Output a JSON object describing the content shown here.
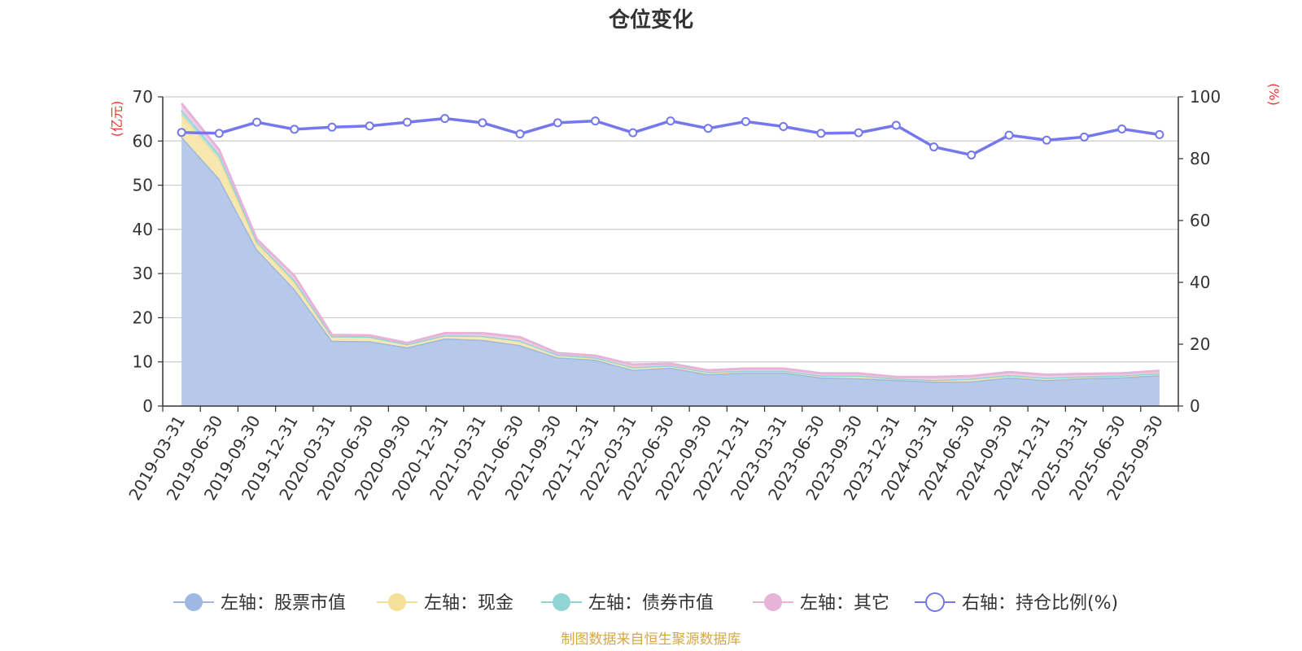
{
  "chart_data": {
    "type": "area",
    "title": "仓位变化",
    "left_unit": "(亿元)",
    "right_unit": "(%)",
    "left_ylim": [
      0,
      70
    ],
    "left_ticks": [
      0,
      10,
      20,
      30,
      40,
      50,
      60,
      70
    ],
    "right_ylim": [
      0,
      100
    ],
    "right_ticks": [
      0,
      20,
      40,
      60,
      80,
      100
    ],
    "categories": [
      "2019-03-31",
      "2019-06-30",
      "2019-09-30",
      "2019-12-31",
      "2020-03-31",
      "2020-06-30",
      "2020-09-30",
      "2020-12-31",
      "2021-03-31",
      "2021-06-30",
      "2021-09-30",
      "2021-12-31",
      "2022-03-31",
      "2022-06-30",
      "2022-09-30",
      "2022-12-31",
      "2023-03-31",
      "2023-06-30",
      "2023-09-30",
      "2023-12-31",
      "2024-03-31",
      "2024-06-30",
      "2024-09-30",
      "2024-12-31",
      "2025-03-31",
      "2025-06-30",
      "2025-09-30"
    ],
    "series": [
      {
        "name": "左轴：股票市值",
        "axis": "left",
        "type": "area",
        "color": "#9db8e2",
        "fill": "#b6c9e8",
        "values": [
          61.0,
          51.5,
          35.5,
          26.5,
          14.8,
          14.7,
          13.3,
          15.3,
          15.0,
          13.8,
          11.0,
          10.5,
          8.2,
          8.7,
          7.2,
          7.6,
          7.6,
          6.5,
          6.3,
          5.9,
          5.5,
          5.6,
          6.5,
          5.9,
          6.3,
          6.5,
          7.0
        ]
      },
      {
        "name": "左轴：现金",
        "axis": "left",
        "type": "area",
        "color": "#f5e09a",
        "fill": "#f8e8b0",
        "values": [
          5.0,
          4.5,
          1.5,
          1.5,
          1.0,
          1.0,
          0.7,
          0.7,
          0.9,
          1.0,
          0.6,
          0.5,
          0.6,
          0.5,
          0.5,
          0.4,
          0.4,
          0.4,
          0.6,
          0.3,
          0.4,
          0.6,
          0.5,
          0.5,
          0.4,
          0.4,
          0.4
        ]
      },
      {
        "name": "左轴：债券市值",
        "axis": "left",
        "type": "area",
        "color": "#90d4d4",
        "fill": "#b3e3e0",
        "values": [
          1.0,
          1.0,
          0.3,
          0.5,
          0,
          0,
          0,
          0,
          0,
          0,
          0,
          0,
          0,
          0,
          0,
          0,
          0,
          0,
          0,
          0,
          0,
          0,
          0,
          0,
          0,
          0,
          0
        ]
      },
      {
        "name": "左轴：其它",
        "axis": "left",
        "type": "area",
        "color": "#e6b3d9",
        "fill": "#eecde6",
        "values": [
          1.5,
          1.0,
          0.5,
          1.0,
          0.3,
          0.3,
          0.3,
          0.5,
          0.6,
          0.8,
          0.4,
          0.4,
          0.6,
          0.4,
          0.4,
          0.5,
          0.5,
          0.5,
          0.5,
          0.4,
          0.7,
          0.6,
          0.7,
          0.7,
          0.6,
          0.5,
          0.6
        ]
      },
      {
        "name": "右轴：持仓比例(%)",
        "axis": "right",
        "type": "line",
        "color": "#7478ec",
        "values": [
          88.5,
          88.2,
          91.8,
          89.5,
          90.2,
          90.6,
          91.8,
          93.0,
          91.6,
          88.0,
          91.6,
          92.2,
          88.4,
          92.2,
          89.8,
          92.0,
          90.4,
          88.2,
          88.4,
          90.8,
          83.8,
          81.2,
          87.6,
          86.0,
          87.0,
          89.6,
          87.8
        ]
      }
    ],
    "legend_position": "bottom",
    "grid": true
  },
  "source_note": "制图数据来自恒生聚源数据库",
  "colors": {
    "axis_unit": "#ee3333",
    "source_note": "#d4a84a",
    "grid": "#cccccc",
    "axis": "#333333"
  }
}
